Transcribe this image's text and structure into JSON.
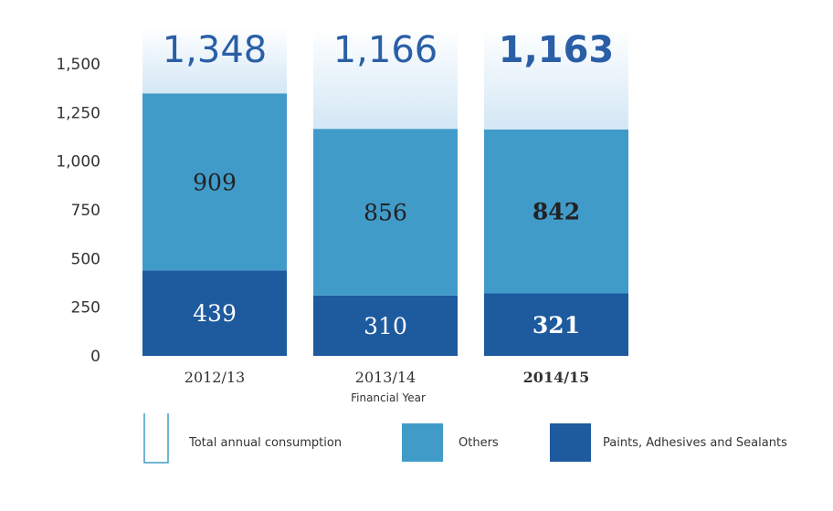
{
  "chart_data": {
    "type": "bar",
    "stacked": true,
    "categories": [
      "2012/13",
      "2013/14",
      "2014/15"
    ],
    "highlight_category": "2014/15",
    "xlabel": "Financial Year",
    "ylabel": "",
    "ylim": [
      0,
      1500
    ],
    "yticks": [
      {
        "value": 0,
        "label": "0"
      },
      {
        "value": 250,
        "label": "250"
      },
      {
        "value": 500,
        "label": "500"
      },
      {
        "value": 750,
        "label": "750"
      },
      {
        "value": 1000,
        "label": "1,000"
      },
      {
        "value": 1250,
        "label": "1,250"
      },
      {
        "value": 1500,
        "label": "1,500"
      }
    ],
    "grid": false,
    "series": [
      {
        "name": "Paints, Adhesives and Sealants",
        "values": [
          439,
          310,
          321
        ],
        "labels": [
          "439",
          "310",
          "321"
        ],
        "color": "#1d5a9e",
        "label_color": "#ffffff"
      },
      {
        "name": "Others",
        "values": [
          909,
          856,
          842
        ],
        "labels": [
          "909",
          "856",
          "842"
        ],
        "color": "#419bc9",
        "label_color": "#222222"
      }
    ],
    "totals": {
      "name": "Total annual consumption",
      "values": [
        1348,
        1166,
        1163
      ],
      "labels": [
        "1,348",
        "1,166",
        "1,163"
      ],
      "color": "#2a5fa6"
    },
    "legend": {
      "position": "bottom",
      "items": [
        {
          "label": "Total annual consumption",
          "style": "outline"
        },
        {
          "label": "Others",
          "style": "fill",
          "color": "#419bc9"
        },
        {
          "label": "Paints, Adhesives and Sealants",
          "style": "fill",
          "color": "#1d5a9e"
        }
      ]
    }
  }
}
